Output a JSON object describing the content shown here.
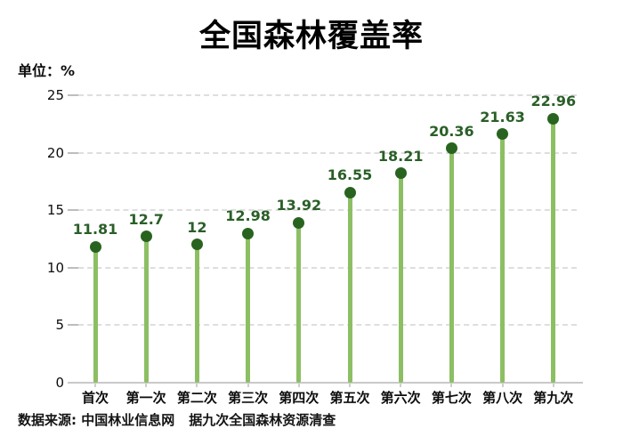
{
  "header": {
    "title": "全国森林覆盖率",
    "unit_label": "单位：%"
  },
  "footer": {
    "source": "数据来源: 中国林业信息网",
    "note": "据九次全国森林资源清查"
  },
  "chart_data": {
    "type": "bar",
    "variant": "lollipop",
    "title": "全国森林覆盖率",
    "unit": "%",
    "xlabel": "",
    "ylabel": "单位：%",
    "categories": [
      "首次",
      "第一次",
      "第二次",
      "第三次",
      "第四次",
      "第五次",
      "第六次",
      "第七次",
      "第八次",
      "第九次"
    ],
    "values": [
      11.81,
      12.7,
      12,
      12.98,
      13.92,
      16.55,
      18.21,
      20.36,
      21.63,
      22.96
    ],
    "value_labels": [
      "11.81",
      "12.7",
      "12",
      "12.98",
      "13.92",
      "16.55",
      "18.21",
      "20.36",
      "21.63",
      "22.96"
    ],
    "ylim": [
      0,
      25
    ],
    "yticks": [
      0,
      5,
      10,
      15,
      20,
      25
    ],
    "grid": "horizontal-dashed",
    "legend": "none",
    "colors": {
      "stem": "#8cbf63",
      "dot": "#28641f",
      "value_label": "#2a5f28",
      "grid": "#dedede",
      "axis": "#c9c9c9",
      "text": "#0d0d0d"
    }
  }
}
